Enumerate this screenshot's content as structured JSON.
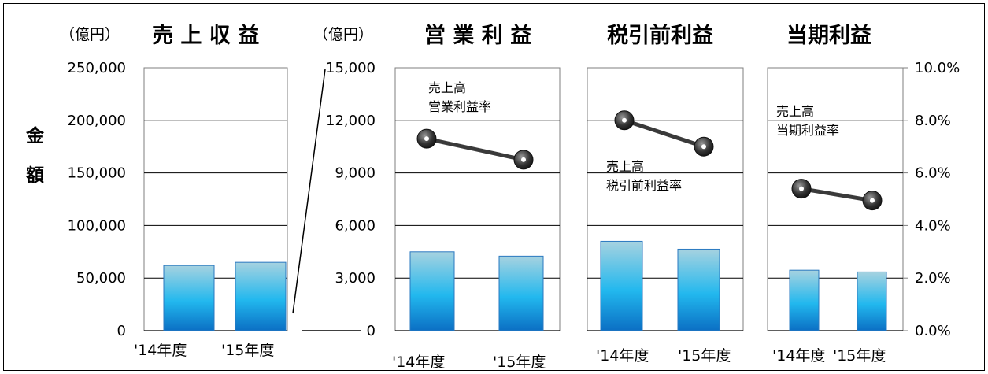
{
  "chart_data": [
    {
      "type": "bar",
      "title": "売 上 収 益",
      "unit": "（億円）",
      "ylabel": [
        "金",
        "額"
      ],
      "categories": [
        "'14年度",
        "'15年度"
      ],
      "values": [
        62000,
        65000
      ],
      "ylim": [
        0,
        250000
      ],
      "yticks": [
        "250,000",
        "200,000",
        "150,000",
        "100,000",
        "50,000",
        "0"
      ],
      "grid": true
    },
    {
      "type": "bar",
      "title": "営 業 利 益",
      "unit": "（億円）",
      "categories": [
        "'14年度",
        "'15年度"
      ],
      "values": [
        4500,
        4250
      ],
      "ylim": [
        0,
        15000
      ],
      "yticks": [
        "15,000",
        "12,000",
        "9,000",
        "6,000",
        "3,000",
        "0"
      ],
      "rate_label": [
        "売上高",
        "営業利益率"
      ],
      "rate_values": [
        7.3,
        6.5
      ],
      "grid": true
    },
    {
      "type": "bar",
      "title": "税引前利益",
      "categories": [
        "'14年度",
        "'15年度"
      ],
      "values": [
        5100,
        4650
      ],
      "ylim": [
        0,
        15000
      ],
      "rate_label": [
        "売上高",
        "税引前利益率"
      ],
      "rate_values": [
        8.0,
        7.0
      ],
      "grid": true
    },
    {
      "type": "bar",
      "title": "当期利益",
      "categories": [
        "'14年度",
        "'15年度"
      ],
      "values": [
        3450,
        3350
      ],
      "ylim": [
        0,
        15000
      ],
      "rate_label": [
        "売上高",
        "当期利益率"
      ],
      "rate_values": [
        5.4,
        4.95
      ],
      "rate_ylim": [
        0,
        10
      ],
      "rate_ticks": [
        "10.0%",
        "8.0%",
        "6.0%",
        "4.0%",
        "2.0%",
        "0.0%"
      ],
      "grid": true
    }
  ],
  "colors": {
    "bar_top": "#a6d2e0",
    "bar_mid": "#22b8ee",
    "bar_bottom": "#0b6fc4",
    "bar_border": "#2a78c0",
    "rate_line": "#3a3a3a",
    "rate_marker": "#222222",
    "grid": "#000000",
    "axis": "#7f7f7f"
  }
}
